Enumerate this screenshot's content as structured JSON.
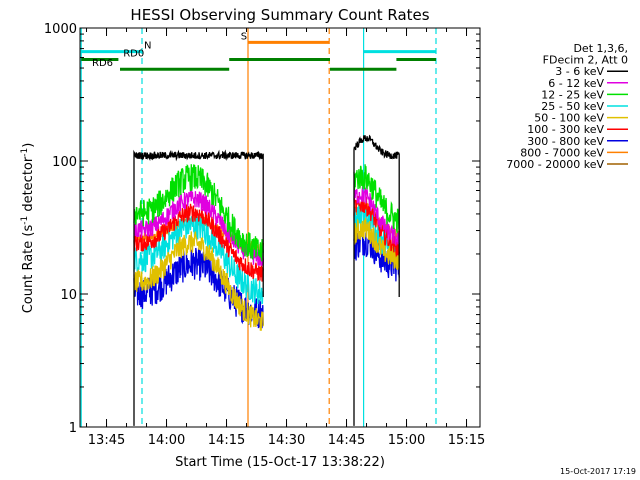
{
  "chart_data": {
    "type": "line",
    "title": "HESSI Observing Summary Count Rates",
    "xlabel": "Start Time (15-Oct-17 13:38:22)",
    "ylabel_main": "Count Rate (s",
    "ylabel_sup1": "-1",
    "ylabel_mid": " detector",
    "ylabel_sup2": "-1",
    "ylabel_end": ")",
    "timestamp": "15-Oct-2017 17:19",
    "x_start": "13:38:22",
    "xlim_minutes": [
      0,
      100
    ],
    "yscale": "log",
    "ylim": [
      1,
      1000
    ],
    "x_ticks": [
      {
        "label": "13:45",
        "minute": 6.63
      },
      {
        "label": "14:00",
        "minute": 21.63
      },
      {
        "label": "14:15",
        "minute": 36.63
      },
      {
        "label": "14:30",
        "minute": 51.63
      },
      {
        "label": "14:45",
        "minute": 66.63
      },
      {
        "label": "15:00",
        "minute": 81.63
      },
      {
        "label": "15:15",
        "minute": 96.63
      }
    ],
    "y_ticks": [
      {
        "label": "1",
        "value": 1
      },
      {
        "label": "10",
        "value": 10
      },
      {
        "label": "100",
        "value": 100
      },
      {
        "label": "1000",
        "value": 1000
      }
    ],
    "legend_header": [
      "Det 1,3,6,",
      "FDecim 2, Att 0"
    ],
    "segments": [
      {
        "start": 13.5,
        "end": 45.8
      },
      {
        "start": 68.5,
        "end": 79.8
      }
    ],
    "series": [
      {
        "name": "3 - 6 keV",
        "color": "#000000",
        "peak": 110,
        "rise": 0,
        "s1_start": 110,
        "s1_end": 110,
        "s2_start": 110,
        "s2_end": 110,
        "noise": 0.08
      },
      {
        "name": "6 - 12 keV",
        "color": "#e000e0",
        "peak": 48,
        "rise": 2.2,
        "s1_start": 30,
        "s1_end": 18,
        "s2_start": 48,
        "s2_end": 25,
        "noise": 0.2
      },
      {
        "name": "12 - 25 keV",
        "color": "#00e000",
        "peak": 80,
        "rise": 2.6,
        "s1_start": 40,
        "s1_end": 20,
        "s2_start": 65,
        "s2_end": 35,
        "noise": 0.3
      },
      {
        "name": "25 - 50 keV",
        "color": "#00e0e0",
        "peak": 30,
        "rise": 2.4,
        "s1_start": 18,
        "s1_end": 10,
        "s2_start": 32,
        "s2_end": 20,
        "noise": 0.3
      },
      {
        "name": "50 - 100 keV",
        "color": "#e0c000",
        "peak": 25,
        "rise": 2.8,
        "s1_start": 12,
        "s1_end": 6,
        "s2_start": 25,
        "s2_end": 18,
        "noise": 0.25
      },
      {
        "name": "100 - 300 keV",
        "color": "#ff0000",
        "peak": 40,
        "rise": 2.2,
        "s1_start": 24,
        "s1_end": 14,
        "s2_start": 40,
        "s2_end": 22,
        "noise": 0.2
      },
      {
        "name": "300 - 800 keV",
        "color": "#0000e0",
        "peak": 18,
        "rise": 2.0,
        "s1_start": 10,
        "s1_end": 7,
        "s2_start": 20,
        "s2_end": 16,
        "noise": 0.35
      },
      {
        "name": "800 - 7000 keV",
        "color": "#ff8000",
        "peak": 35,
        "rise": 1.5,
        "s1_start": 26,
        "s1_end": 22,
        "s2_start": 36,
        "s2_end": 28,
        "noise": 0.12
      },
      {
        "name": "7000 - 20000 keV",
        "color": "#a06000",
        "peak": 0,
        "rise": 0,
        "s1_start": 0,
        "s1_end": 0,
        "s2_start": 0,
        "s2_end": 0,
        "noise": 0
      }
    ],
    "vlines": [
      {
        "minute": 0.3,
        "color": "#00e0e0",
        "style": "solid"
      },
      {
        "minute": 15.5,
        "color": "#00e0e0",
        "style": "dashed"
      },
      {
        "minute": 42.0,
        "color": "#ff8000",
        "style": "solid"
      },
      {
        "minute": 62.3,
        "color": "#ff8000",
        "style": "dashed"
      },
      {
        "minute": 70.9,
        "color": "#00e0e0",
        "style": "solid"
      },
      {
        "minute": 89.0,
        "color": "#00e0e0",
        "style": "dashed"
      }
    ],
    "flag_bars": [
      {
        "label": "N",
        "label_color": "#00e0e0",
        "color": "#00e0e0",
        "level": 665,
        "start": 0.3,
        "end": 15.5,
        "label_at": 16.0
      },
      {
        "label": "",
        "label_color": "",
        "color": "#00e0e0",
        "level": 665,
        "start": 70.9,
        "end": 89.0,
        "label_at": 0
      },
      {
        "label": "S",
        "label_color": "#ff8000",
        "color": "#ff8000",
        "level": 780,
        "start": 42.0,
        "end": 62.3,
        "label_at": 40.2
      },
      {
        "label": "RD0",
        "label_color": "#006400",
        "color": "#008000",
        "level": 580,
        "start": 0.3,
        "end": 9.6,
        "label_at": 10.8
      },
      {
        "label": "RD6",
        "label_color": "#006400",
        "color": "#008000",
        "level": 490,
        "start": 10.0,
        "end": 37.3,
        "label_at": 3.0
      },
      {
        "label": "",
        "label_color": "",
        "color": "#008000",
        "level": 580,
        "start": 37.3,
        "end": 62.5,
        "label_at": 0
      },
      {
        "label": "",
        "label_color": "",
        "color": "#008000",
        "level": 490,
        "start": 62.5,
        "end": 79.1,
        "label_at": 0
      },
      {
        "label": "",
        "label_color": "",
        "color": "#008000",
        "level": 580,
        "start": 79.1,
        "end": 89.0,
        "label_at": 0
      }
    ]
  }
}
